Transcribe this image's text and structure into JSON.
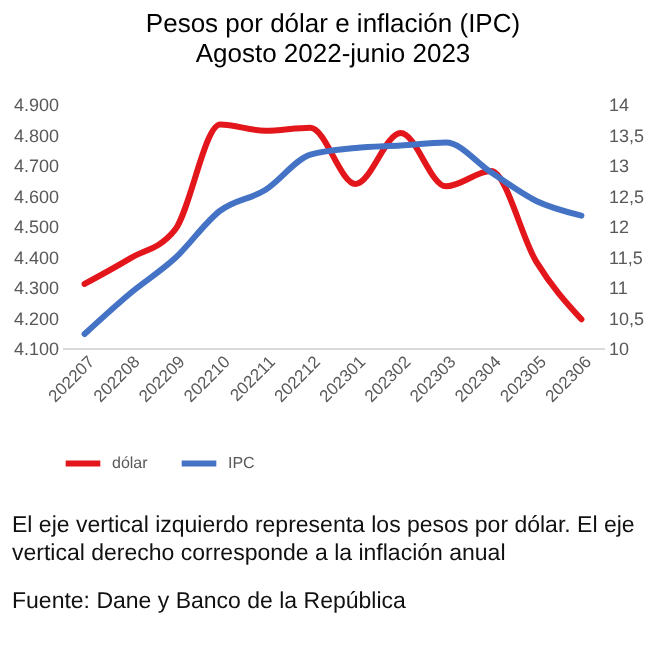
{
  "chart_data": {
    "type": "line",
    "title": "Pesos por dólar e inflación (IPC)",
    "subtitle": "Agosto 2022-junio 2023",
    "categories": [
      "202207",
      "202208",
      "202209",
      "202210",
      "202211",
      "202212",
      "202301",
      "202302",
      "202303",
      "202304",
      "202305",
      "202306"
    ],
    "series": [
      {
        "name": "dólar",
        "color": "#e3161b",
        "values": [
          4310,
          4393,
          4487,
          4833,
          4812,
          4822,
          4638,
          4805,
          4630,
          4680,
          4383,
          4194
        ]
      },
      {
        "name": "IPC",
        "color": "#4472c4",
        "axis": "y2",
        "values": [
          10.23,
          10.89,
          11.47,
          12.25,
          12.59,
          13.17,
          13.28,
          13.32,
          13.37,
          12.88,
          12.41,
          12.17
        ]
      }
    ],
    "ylim": [
      4100,
      4900
    ],
    "yticks": [
      {
        "value": 4100,
        "label": "4.100"
      },
      {
        "value": 4200,
        "label": "4.200"
      },
      {
        "value": 4300,
        "label": "4.300"
      },
      {
        "value": 4400,
        "label": "4.400"
      },
      {
        "value": 4500,
        "label": "4.500"
      },
      {
        "value": 4600,
        "label": "4.600"
      },
      {
        "value": 4700,
        "label": "4.700"
      },
      {
        "value": 4800,
        "label": "4.800"
      },
      {
        "value": 4900,
        "label": "4.900"
      }
    ],
    "y2lim": [
      10,
      14
    ],
    "y2ticks": [
      10,
      {
        "value": 10.5,
        "label": "10,5"
      },
      11,
      {
        "value": 11.5,
        "label": "11,5"
      },
      12,
      {
        "value": 12.5,
        "label": "12,5"
      },
      13,
      {
        "value": 13.5,
        "label": "13,5"
      },
      14
    ],
    "grid": false,
    "legend": "bottom",
    "marker": "none",
    "line_style": "solid",
    "annotations": [
      "El eje vertical izquierdo representa los pesos por dólar. El eje vertical derecho corresponde a la inflación anual",
      "Fuente: Dane y Banco de la República"
    ]
  }
}
